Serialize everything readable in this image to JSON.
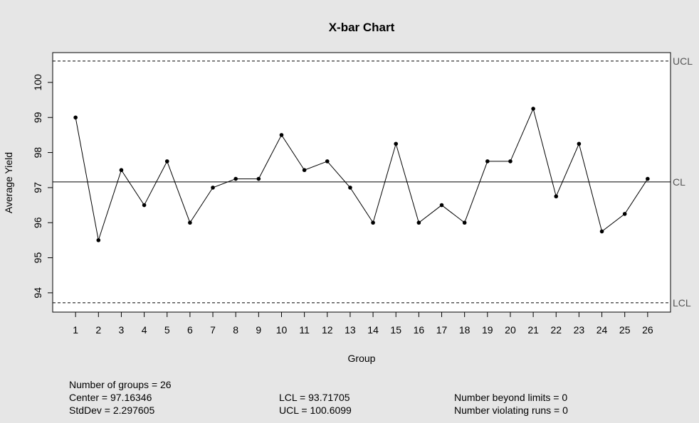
{
  "chart_data": {
    "type": "line",
    "title": "X-bar Chart",
    "xlabel": "Group",
    "ylabel": "Average Yield",
    "x": [
      1,
      2,
      3,
      4,
      5,
      6,
      7,
      8,
      9,
      10,
      11,
      12,
      13,
      14,
      15,
      16,
      17,
      18,
      19,
      20,
      21,
      22,
      23,
      24,
      25,
      26
    ],
    "values": [
      99.0,
      95.5,
      97.5,
      96.5,
      97.75,
      96.0,
      97.0,
      97.25,
      97.25,
      98.5,
      97.5,
      97.75,
      97.0,
      96.0,
      98.25,
      96.0,
      96.5,
      96.0,
      97.75,
      97.75,
      99.25,
      96.75,
      98.25,
      95.75,
      96.25,
      97.25
    ],
    "yticks": [
      94,
      95,
      96,
      97,
      98,
      99,
      100
    ],
    "xlim": [
      0,
      27
    ],
    "ylim": [
      93.45,
      100.85
    ],
    "grid": false,
    "reference_lines": [
      {
        "label": "UCL",
        "value": 100.6099,
        "style": "dashed"
      },
      {
        "label": "CL",
        "value": 97.16346,
        "style": "solid"
      },
      {
        "label": "LCL",
        "value": 93.71705,
        "style": "dashed"
      }
    ]
  },
  "stats": {
    "groups": "Number of groups = 26",
    "center": "Center = 97.16346",
    "stddev": "StdDev = 2.297605",
    "lcl": "LCL = 93.71705",
    "ucl": "UCL = 100.6099",
    "beyond": "Number beyond limits = 0",
    "violating": "Number violating runs = 0"
  }
}
